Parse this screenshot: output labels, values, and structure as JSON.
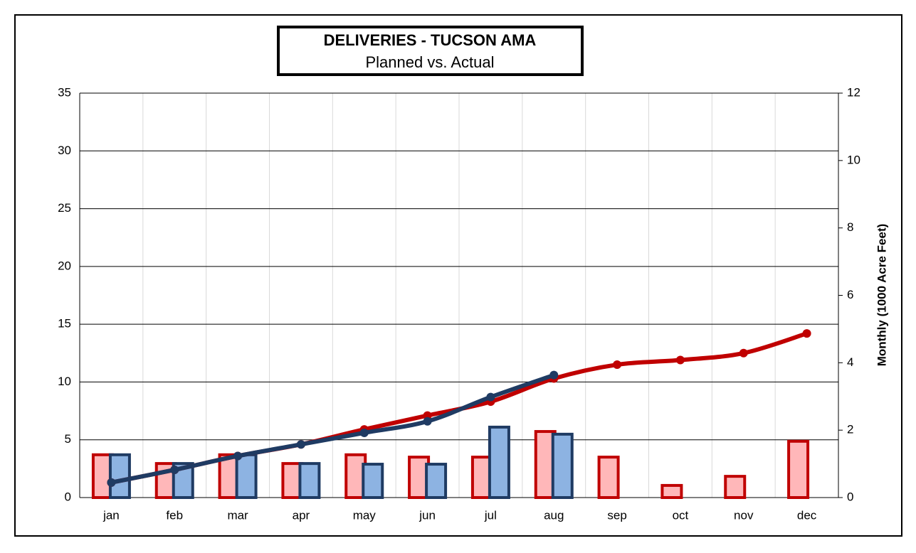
{
  "chart_data": {
    "type": "combo",
    "title": "DELIVERIES - TUCSON AMA",
    "subtitle": "Planned vs. Actual",
    "y2label": "Monthly (1000 Acre Feet)",
    "categories": [
      "jan",
      "feb",
      "mar",
      "apr",
      "may",
      "jun",
      "jul",
      "aug",
      "sep",
      "oct",
      "nov",
      "dec"
    ],
    "ylim": [
      0,
      35
    ],
    "yticks": [
      0,
      5,
      10,
      15,
      20,
      25,
      30,
      35
    ],
    "y2lim": [
      0,
      12
    ],
    "y2ticks": [
      0,
      2,
      4,
      6,
      8,
      10,
      12
    ],
    "grid": true,
    "series": [
      {
        "type": "bar",
        "axis": "y2",
        "color": "#c00000",
        "fill": "#ffb7b9",
        "values": [
          1.27,
          1.01,
          1.27,
          1.01,
          1.27,
          1.2,
          1.2,
          1.96,
          1.2,
          0.36,
          0.63,
          1.67
        ]
      },
      {
        "type": "bar",
        "axis": "y2",
        "color": "#1f3b63",
        "fill": "#8db3e2",
        "values": [
          1.27,
          1.01,
          1.27,
          1.01,
          0.99,
          0.99,
          2.09,
          1.88,
          null,
          null,
          null,
          null
        ]
      },
      {
        "type": "line",
        "axis": "y",
        "color": "#c00000",
        "values": [
          1.3,
          2.4,
          3.6,
          4.6,
          5.9,
          7.1,
          8.3,
          10.3,
          11.5,
          11.9,
          12.5,
          14.2
        ]
      },
      {
        "type": "line",
        "axis": "y",
        "color": "#1f3b63",
        "values": [
          1.3,
          2.4,
          3.6,
          4.6,
          5.6,
          6.6,
          8.7,
          10.6,
          null,
          null,
          null,
          null
        ]
      }
    ]
  }
}
